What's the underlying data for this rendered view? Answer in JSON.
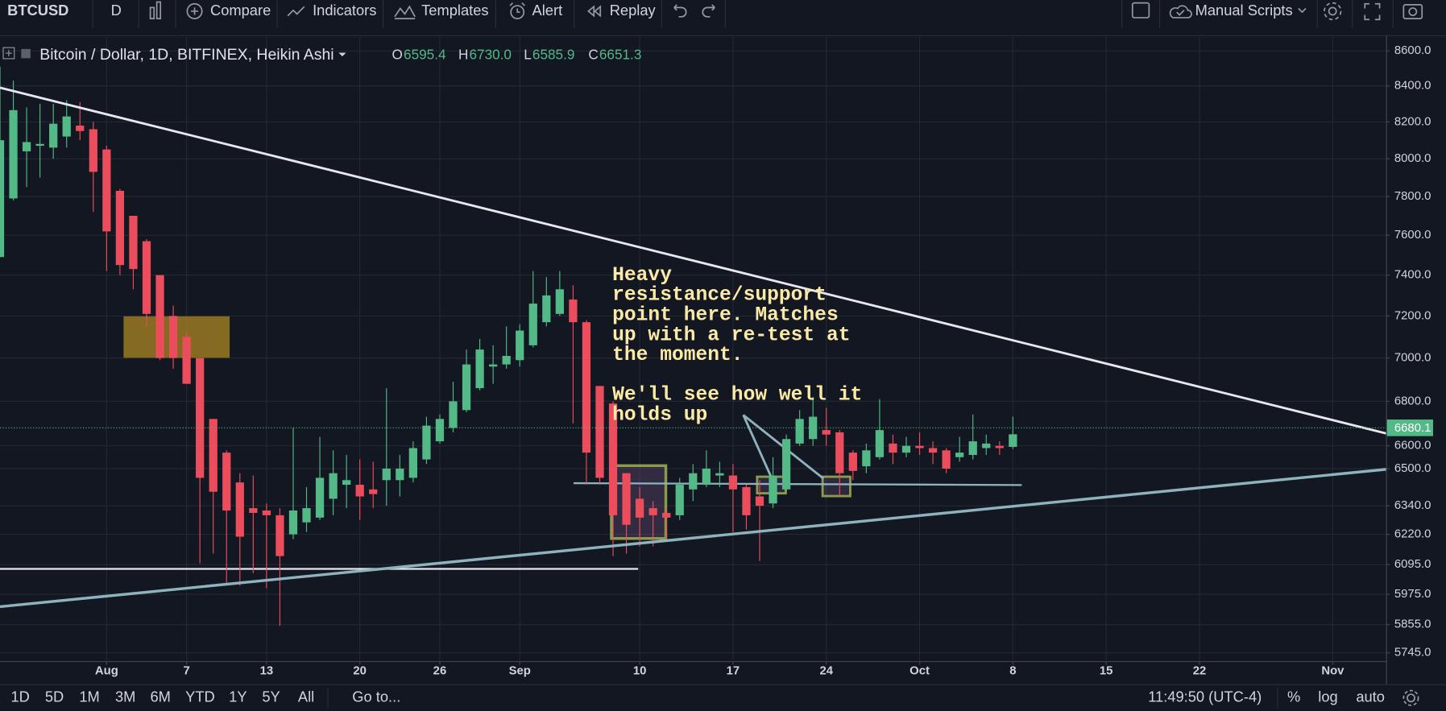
{
  "toolbar": {
    "symbol": "BTCUSD",
    "interval": "D",
    "buttons": [
      "Compare",
      "Indicators",
      "Templates",
      "Alert",
      "Replay"
    ],
    "scripts": "Manual Scripts"
  },
  "legend": {
    "title": "Bitcoin / Dollar, 1D, BITFINEX, Heikin Ashi",
    "ohlc": [
      {
        "label": "O",
        "value": "6595.4"
      },
      {
        "label": "H",
        "value": "6730.0"
      },
      {
        "label": "L",
        "value": "6585.9"
      },
      {
        "label": "C",
        "value": "6651.3"
      }
    ]
  },
  "chart_data": {
    "type": "candlestick",
    "x": [
      "07-24",
      "07-25",
      "07-26",
      "07-27",
      "07-28",
      "07-29",
      "07-30",
      "07-31",
      "08-01",
      "08-02",
      "08-03",
      "08-04",
      "08-05",
      "08-06",
      "08-07",
      "08-08",
      "08-09",
      "08-10",
      "08-11",
      "08-12",
      "08-13",
      "08-14",
      "08-15",
      "08-16",
      "08-17",
      "08-18",
      "08-19",
      "08-20",
      "08-21",
      "08-22",
      "08-23",
      "08-24",
      "08-25",
      "08-26",
      "08-27",
      "08-28",
      "08-29",
      "08-30",
      "08-31",
      "09-01",
      "09-02",
      "09-03",
      "09-04",
      "09-05",
      "09-06",
      "09-07",
      "09-08",
      "09-09",
      "09-10",
      "09-11",
      "09-12",
      "09-13",
      "09-14",
      "09-15",
      "09-16",
      "09-17",
      "09-18",
      "09-19",
      "09-20",
      "09-21",
      "09-22",
      "09-23",
      "09-24",
      "09-25",
      "09-26",
      "09-27",
      "09-28",
      "09-29",
      "09-30",
      "10-01",
      "10-02",
      "10-03",
      "10-04",
      "10-05",
      "10-06",
      "10-07",
      "10-08"
    ],
    "open": [
      7490,
      7790,
      8040,
      8070,
      8060,
      8120,
      8180,
      8160,
      8050,
      7830,
      7700,
      7570,
      7400,
      7200,
      7100,
      7000,
      6720,
      6570,
      6440,
      6330,
      6320,
      6300,
      6220,
      6270,
      6290,
      6370,
      6430,
      6430,
      6410,
      6450,
      6450,
      6460,
      6540,
      6620,
      6680,
      6760,
      6860,
      6960,
      6970,
      6990,
      7060,
      7170,
      7210,
      7280,
      7170,
      6870,
      6790,
      6480,
      6370,
      6330,
      6310,
      6300,
      6410,
      6430,
      6470,
      6470,
      6420,
      6380,
      6350,
      6410,
      6610,
      6630,
      6670,
      6660,
      6570,
      6510,
      6550,
      6610,
      6570,
      6600,
      6590,
      6580,
      6550,
      6560,
      6590,
      6600,
      6595.4
    ],
    "high": [
      8510,
      8430,
      8280,
      8300,
      8300,
      8320,
      8310,
      8200,
      8070,
      7840,
      7700,
      7580,
      7400,
      7250,
      7120,
      7000,
      6720,
      6580,
      6480,
      6470,
      6350,
      6330,
      6680,
      6420,
      6640,
      6580,
      6560,
      6540,
      6530,
      6860,
      6560,
      6620,
      6730,
      6740,
      6890,
      7040,
      7090,
      7060,
      7150,
      7160,
      7420,
      7390,
      7420,
      7350,
      7180,
      6870,
      6800,
      6480,
      6420,
      6360,
      6330,
      6460,
      6520,
      6580,
      6530,
      6520,
      6430,
      6450,
      6550,
      6650,
      6760,
      6820,
      6770,
      6670,
      6580,
      6610,
      6810,
      6650,
      6640,
      6660,
      6620,
      6590,
      6640,
      6740,
      6650,
      6620,
      6730
    ],
    "low": [
      7490,
      7780,
      7850,
      7900,
      8000,
      8060,
      8100,
      7720,
      7420,
      7400,
      7330,
      7150,
      6990,
      6950,
      6880,
      6100,
      6140,
      6020,
      6010,
      6060,
      6000,
      5850,
      6200,
      6230,
      6280,
      6300,
      6330,
      6280,
      6330,
      6340,
      6380,
      6440,
      6520,
      6610,
      6660,
      6750,
      6850,
      6880,
      6950,
      6960,
      7050,
      7150,
      7200,
      6700,
      6430,
      6430,
      6130,
      6140,
      6170,
      6170,
      6190,
      6280,
      6360,
      6420,
      6420,
      6230,
      6240,
      6110,
      6330,
      6400,
      6600,
      6600,
      6600,
      6380,
      6450,
      6480,
      6540,
      6520,
      6550,
      6560,
      6520,
      6480,
      6530,
      6540,
      6560,
      6560,
      6585.9
    ],
    "close": [
      8100,
      8265,
      8090,
      8080,
      8190,
      8230,
      8150,
      7930,
      7620,
      7450,
      7430,
      7210,
      7000,
      7000,
      6880,
      6460,
      6400,
      6320,
      6210,
      6310,
      6300,
      6130,
      6320,
      6330,
      6460,
      6480,
      6450,
      6380,
      6390,
      6500,
      6500,
      6590,
      6690,
      6720,
      6800,
      6970,
      7040,
      6970,
      7010,
      7130,
      7260,
      7300,
      7330,
      7170,
      6570,
      6460,
      6300,
      6260,
      6290,
      6300,
      6290,
      6430,
      6480,
      6500,
      6480,
      6410,
      6300,
      6340,
      6470,
      6630,
      6720,
      6730,
      6650,
      6480,
      6490,
      6580,
      6670,
      6570,
      6600,
      6590,
      6570,
      6500,
      6570,
      6620,
      6610,
      6590,
      6651.3
    ],
    "up_color": "#53b987",
    "down_color": "#eb4d5c",
    "xlim": [
      "07-24",
      "11-05"
    ],
    "xticks": [
      {
        "value": "08-01",
        "label": "Aug"
      },
      {
        "value": "08-07",
        "label": "7"
      },
      {
        "value": "08-13",
        "label": "13"
      },
      {
        "value": "08-20",
        "label": "20"
      },
      {
        "value": "08-26",
        "label": "26"
      },
      {
        "value": "09-01",
        "label": "Sep"
      },
      {
        "value": "09-10",
        "label": "10"
      },
      {
        "value": "09-17",
        "label": "17"
      },
      {
        "value": "09-24",
        "label": "24"
      },
      {
        "value": "10-01",
        "label": "Oct"
      },
      {
        "value": "10-08",
        "label": "8"
      },
      {
        "value": "10-15",
        "label": "15"
      },
      {
        "value": "10-22",
        "label": "22"
      },
      {
        "value": "11-01",
        "label": "Nov"
      }
    ],
    "ylim": [
      5717,
      8680
    ],
    "yticks": [
      {
        "value": 5745,
        "label": "5745.0"
      },
      {
        "value": 5855,
        "label": "5855.0"
      },
      {
        "value": 5975,
        "label": "5975.0"
      },
      {
        "value": 6095,
        "label": "6095.0"
      },
      {
        "value": 6220,
        "label": "6220.0"
      },
      {
        "value": 6340,
        "label": "6340.0"
      },
      {
        "value": 6500,
        "label": "6500.0"
      },
      {
        "value": 6600,
        "label": "6600.0"
      },
      {
        "value": 6800,
        "label": "6800.0"
      },
      {
        "value": 7000,
        "label": "7000.0"
      },
      {
        "value": 7200,
        "label": "7200.0"
      },
      {
        "value": 7400,
        "label": "7400.0"
      },
      {
        "value": 7600,
        "label": "7600.0"
      },
      {
        "value": 7800,
        "label": "7800.0"
      },
      {
        "value": 8000,
        "label": "8000.0"
      },
      {
        "value": 8200,
        "label": "8200.0"
      },
      {
        "value": 8400,
        "label": "8400.0"
      },
      {
        "value": 8600,
        "label": "8600.0"
      }
    ],
    "log_scale": true,
    "grid": true,
    "last_price": {
      "value": 6680.1,
      "label": "6680.1"
    },
    "last_price_color": "#53b987"
  },
  "annotation": {
    "paragraph1": [
      "Heavy",
      "resistance/support",
      "point here. Matches",
      "up with a re-test at",
      "the moment."
    ],
    "paragraph2": [
      "We'll see how well it",
      "holds up"
    ]
  },
  "bottom_bar": {
    "ranges": [
      "1D",
      "5D",
      "1M",
      "3M",
      "6M",
      "YTD",
      "1Y",
      "5Y",
      "All"
    ],
    "goto": "Go to...",
    "time": "11:49:50 (UTC-4)",
    "options": [
      "%",
      "log",
      "auto"
    ]
  }
}
